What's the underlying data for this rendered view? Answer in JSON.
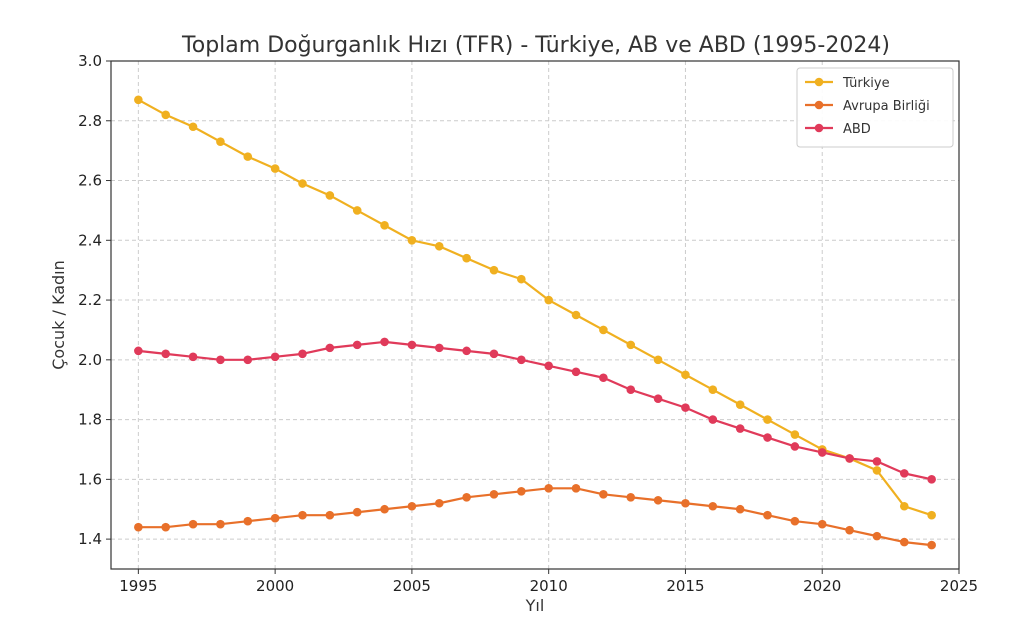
{
  "chart_data": {
    "type": "line",
    "title": "Toplam Doğurganlık Hızı (TFR) - Türkiye, AB ve ABD (1995-2024)",
    "xlabel": "Yıl",
    "ylabel": "Çocuk / Kadın",
    "xlim": [
      1994,
      2025
    ],
    "ylim": [
      1.3,
      3.0
    ],
    "xticks": [
      1995,
      2000,
      2005,
      2010,
      2015,
      2020,
      2025
    ],
    "yticks": [
      1.4,
      1.6,
      1.8,
      2.0,
      2.2,
      2.4,
      2.6,
      2.8,
      3.0
    ],
    "ytick_labels": [
      "1.4",
      "1.6",
      "1.8",
      "2.0",
      "2.2",
      "2.4",
      "2.6",
      "2.8",
      "3.0"
    ],
    "grid": true,
    "legend_position": "top-right",
    "x": [
      1995,
      1996,
      1997,
      1998,
      1999,
      2000,
      2001,
      2002,
      2003,
      2004,
      2005,
      2006,
      2007,
      2008,
      2009,
      2010,
      2011,
      2012,
      2013,
      2014,
      2015,
      2016,
      2017,
      2018,
      2019,
      2020,
      2021,
      2022,
      2023,
      2024
    ],
    "series": [
      {
        "name": "Türkiye",
        "color": "#f0b020",
        "values": [
          2.87,
          2.82,
          2.78,
          2.73,
          2.68,
          2.64,
          2.59,
          2.55,
          2.5,
          2.45,
          2.4,
          2.38,
          2.34,
          2.3,
          2.27,
          2.2,
          2.15,
          2.1,
          2.05,
          2.0,
          1.95,
          1.9,
          1.85,
          1.8,
          1.75,
          1.7,
          1.67,
          1.63,
          1.51,
          1.48
        ]
      },
      {
        "name": "Avrupa Birliği",
        "color": "#e8702a",
        "values": [
          1.44,
          1.44,
          1.45,
          1.45,
          1.46,
          1.47,
          1.48,
          1.48,
          1.49,
          1.5,
          1.51,
          1.52,
          1.54,
          1.55,
          1.56,
          1.57,
          1.57,
          1.55,
          1.54,
          1.53,
          1.52,
          1.51,
          1.5,
          1.48,
          1.46,
          1.45,
          1.43,
          1.41,
          1.39,
          1.38
        ]
      },
      {
        "name": "ABD",
        "color": "#e03a5a",
        "values": [
          2.03,
          2.02,
          2.01,
          2.0,
          2.0,
          2.01,
          2.02,
          2.04,
          2.05,
          2.06,
          2.05,
          2.04,
          2.03,
          2.02,
          2.0,
          1.98,
          1.96,
          1.94,
          1.9,
          1.87,
          1.84,
          1.8,
          1.77,
          1.74,
          1.71,
          1.69,
          1.67,
          1.66,
          1.62,
          1.6
        ]
      }
    ]
  }
}
